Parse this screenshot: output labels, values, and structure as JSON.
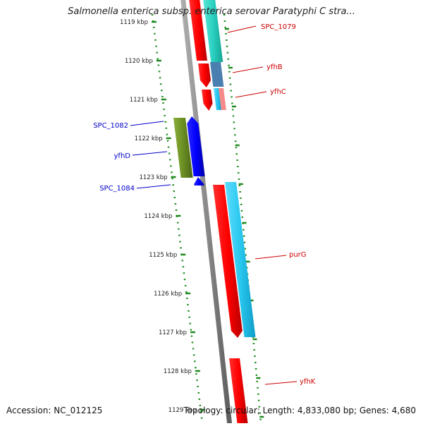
{
  "title": "Salmonella enterica subsp. enterica serovar Paratyphi C stra...",
  "footer": {
    "accession": "Accession: NC_012125",
    "topology": "Topology: circular; Length: 4,833,080 bp; Genes: 4,680"
  },
  "ruler_ticks": [
    "1119 kbp",
    "1120 kbp",
    "1121 kbp",
    "1122 kbp",
    "1123 kbp",
    "1124 kbp",
    "1125 kbp",
    "1126 kbp",
    "1127 kbp",
    "1128 kbp",
    "1129 kbp"
  ],
  "genes": [
    {
      "label": "SPC_1079",
      "color": "#cc0000"
    },
    {
      "label": "yfhB",
      "color": "#cc0000"
    },
    {
      "label": "yfhC",
      "color": "#cc0000"
    },
    {
      "label": "SPC_1082",
      "color": "#0000cc"
    },
    {
      "label": "yfhD",
      "color": "#0000cc"
    },
    {
      "label": "SPC_1084",
      "color": "#0000cc"
    },
    {
      "label": "purG",
      "color": "#cc0000"
    },
    {
      "label": "yfhK",
      "color": "#cc0000"
    }
  ],
  "colors": {
    "backbone": "#8a8a8a",
    "ruler_dots": "#1e8a1e",
    "forward_gene": "#ff0000",
    "reverse_gene": "#0000ff",
    "annotation_cyan": "#29c8ee",
    "annotation_teal": "#2ad0c0",
    "annotation_steel": "#4a7fb0",
    "annotation_olive": "#6b8e23",
    "annotation_pink": "#f58a8a"
  }
}
